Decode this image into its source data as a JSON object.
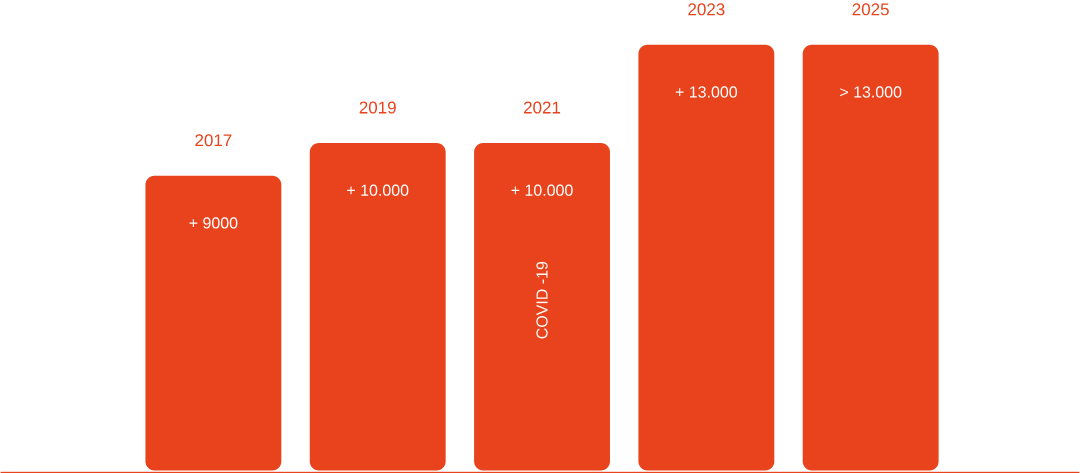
{
  "chart_data": {
    "type": "bar",
    "categories": [
      "2017",
      "2019",
      "2021",
      "2023",
      "2025"
    ],
    "values": [
      9000,
      10000,
      10000,
      13000,
      13000
    ],
    "value_labels": [
      "+ 9000",
      "+ 10.000",
      "+ 10.000",
      "+ 13.000",
      "> 13.000"
    ],
    "color": "#e8431c",
    "annotations": [
      "COVID -19"
    ]
  }
}
